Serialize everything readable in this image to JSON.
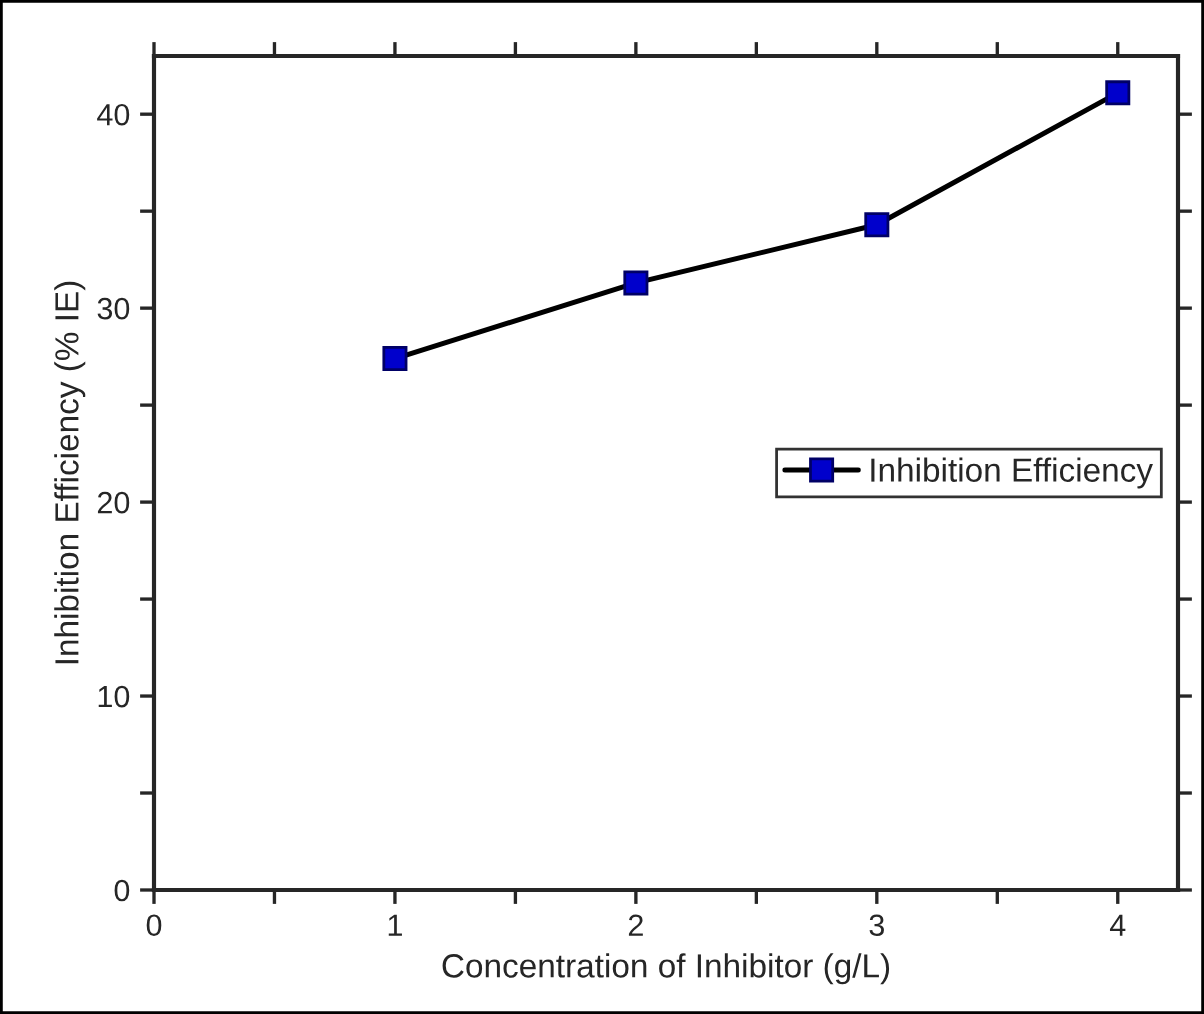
{
  "chart_data": {
    "type": "line",
    "xlabel": "Concentration of Inhibitor (g/L)",
    "ylabel": "Inhibition Efficiency (% IE)",
    "x": [
      1,
      2,
      3,
      4
    ],
    "series": [
      {
        "name": "Inhibition Efficiency",
        "color": "#0000cc",
        "values": [
          27.4,
          31.3,
          34.3,
          41.1
        ]
      }
    ],
    "xlim": [
      0,
      4.25
    ],
    "ylim": [
      0,
      43
    ],
    "xticks": [
      0,
      {
        "value": 0.5,
        "label": null
      },
      1,
      {
        "value": 1.5,
        "label": null
      },
      2,
      {
        "value": 2.5,
        "label": null
      },
      3,
      {
        "value": 3.5,
        "label": null
      },
      4
    ],
    "yticks": [
      0,
      {
        "value": 5,
        "label": null
      },
      10,
      {
        "value": 15,
        "label": null
      },
      20,
      {
        "value": 25,
        "label": null
      },
      30,
      {
        "value": 35,
        "label": null
      },
      40
    ],
    "marker": "square",
    "line_style": "solid",
    "grid": false,
    "legend": "center right"
  }
}
